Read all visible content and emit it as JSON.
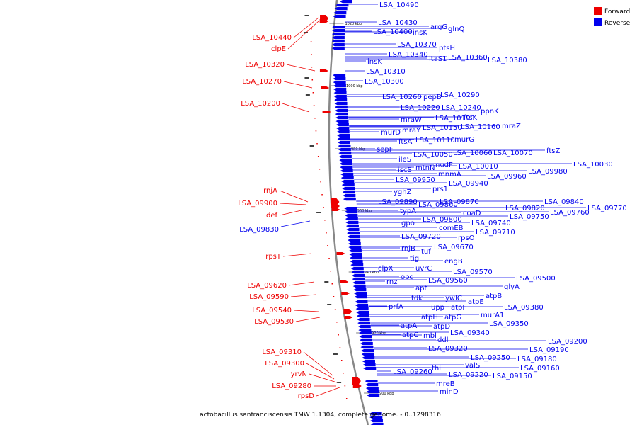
{
  "caption": "Lactobacillus sanfranciscensis TMW 1.1304, complete genome. - 0..1298316",
  "legend": [
    {
      "label": "Forward",
      "color": "#ee0000"
    },
    {
      "label": "Reverse",
      "color": "#0000ee"
    }
  ],
  "ticks": [
    "1020 kbp",
    "1000 kbp",
    "980 kbp",
    "960 kbp",
    "940 kbp",
    "920 kbp",
    "900 kbp"
  ],
  "forward_genes": [
    "LSA_10440",
    "clpE",
    "LSA_10320",
    "LSA_10270",
    "LSA_10200",
    "rnjA",
    "LSA_09900",
    "def",
    "rpsT",
    "LSA_09620",
    "LSA_09590",
    "LSA_09540",
    "LSA_09530",
    "LSA_09310",
    "LSA_09300",
    "yrvN",
    "LSA_09280",
    "rpsD"
  ],
  "reverse_left_genes": [
    "LSA_09830"
  ],
  "reverse_genes": [
    "LSA_10490",
    "LSA_10430",
    "argG",
    "glnQ",
    "LSA_10400",
    "insK",
    "LSA_10370",
    "ptsH",
    "LSA_10340",
    "ltaS1",
    "LSA_10360",
    "LSA_10380",
    "insK",
    "LSA_10310",
    "LSA_10300",
    "LSA_10260",
    "pepB",
    "LSA_10290",
    "LSA_10220",
    "LSA_10240",
    "ppnK",
    "mraW",
    "LSA_10190",
    "ftsK",
    "murD",
    "mraY",
    "LSA_10150",
    "LSA_10160",
    "mraZ",
    "ftsA",
    "LSA_10110",
    "murG",
    "sepF",
    "LSA_10050",
    "LSA_10060",
    "LSA_10070",
    "ftsZ",
    "ileS",
    "nudF",
    "LSA_10030",
    "iscS",
    "mtnN",
    "LSA_10010",
    "LSA_09980",
    "mnmA",
    "LSA_09960",
    "LSA_09950",
    "LSA_09940",
    "yghZ",
    "prs1",
    "LSA_09890",
    "LSA_09870",
    "LSA_09840",
    "typA",
    "LSA_09860",
    "LSA_09820",
    "LSA_09770",
    "coaD",
    "LSA_09760",
    "gpo",
    "LSA_09800",
    "LSA_09750",
    "comEB",
    "LSA_09740",
    "rpsO",
    "LSA_09710",
    "LSA_09720",
    "rnjB",
    "LSA_09670",
    "tuf",
    "tig",
    "engB",
    "clpX",
    "uvrC",
    "rnz",
    "obg",
    "LSA_09570",
    "LSA_09560",
    "LSA_09500",
    "apt",
    "glyA",
    "tdk",
    "ywlC",
    "atpB",
    "prfA",
    "upp",
    "atpF",
    "atpE",
    "LSA_09380",
    "atpH",
    "atpG",
    "murA1",
    "atpA",
    "atpD",
    "LSA_09350",
    "atpC",
    "mbl",
    "LSA_09340",
    "ddl",
    "LSA_09320",
    "LSA_09200",
    "LSA_09250",
    "LSA_09190",
    "LSA_09260",
    "thiI",
    "valS",
    "LSA_09180",
    "LSA_09220",
    "LSA_09160",
    "mreB",
    "LSA_09150",
    "minD"
  ]
}
